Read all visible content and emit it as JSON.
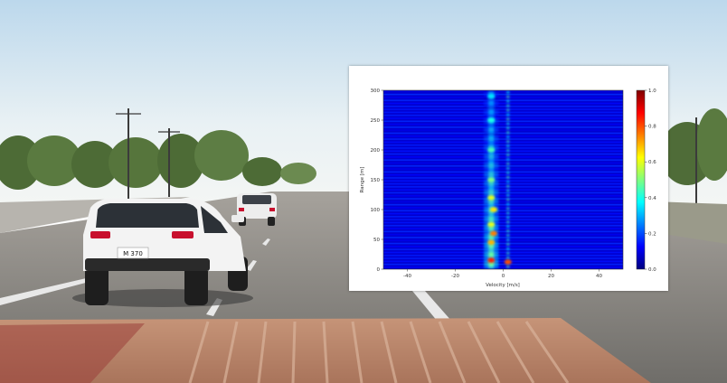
{
  "scene": {
    "description_colors": {
      "sky_top": "#cfe4f2",
      "sky_bottom": "#eef4f6",
      "road": "#7b7a78",
      "crosswalk": "#b9866c",
      "car_body": "#f4f4f4",
      "tail_light": "#c8102e"
    },
    "lead_car": {
      "plate_text": "M 370"
    }
  },
  "chart_data": {
    "type": "heatmap",
    "title": "",
    "xlabel": "Velocity [m/s]",
    "ylabel": "Range [m]",
    "xlim": [
      -50,
      50
    ],
    "ylim": [
      0,
      300
    ],
    "x_ticks": [
      -40,
      -20,
      0,
      20,
      40
    ],
    "y_ticks": [
      0,
      50,
      100,
      150,
      200,
      250,
      300
    ],
    "colorbar": {
      "range": [
        0.0,
        1.0
      ],
      "ticks": [
        "0.0",
        "0.2",
        "0.4",
        "0.6",
        "0.8",
        "1.0"
      ],
      "colormap": "jet"
    },
    "background_value": 0.08,
    "bright_ridge_velocity": -5,
    "secondary_ridge_velocity": 2,
    "hot_spots": [
      {
        "velocity": -5,
        "range": 15,
        "value": 0.85
      },
      {
        "velocity": 2,
        "range": 12,
        "value": 0.8
      },
      {
        "velocity": -5,
        "range": 45,
        "value": 0.7
      },
      {
        "velocity": -4,
        "range": 60,
        "value": 0.75
      },
      {
        "velocity": -5,
        "range": 75,
        "value": 0.6
      },
      {
        "velocity": -4,
        "range": 100,
        "value": 0.65
      },
      {
        "velocity": -5,
        "range": 120,
        "value": 0.6
      },
      {
        "velocity": -5,
        "range": 150,
        "value": 0.5
      },
      {
        "velocity": -5,
        "range": 200,
        "value": 0.45
      },
      {
        "velocity": -5,
        "range": 250,
        "value": 0.4
      },
      {
        "velocity": -5,
        "range": 290,
        "value": 0.35
      }
    ]
  }
}
